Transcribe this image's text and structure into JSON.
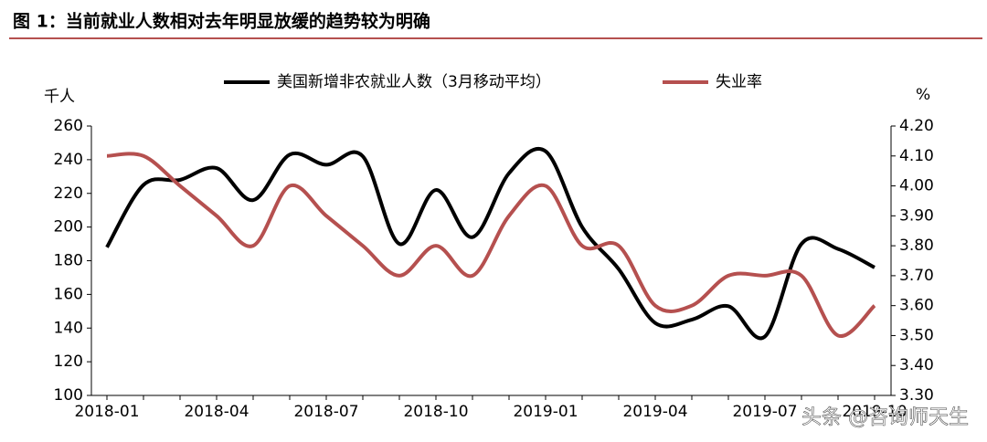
{
  "chart_data": {
    "type": "line",
    "title": "图 1：当前就业人数相对去年明显放缓的趋势较为明确",
    "y_unit": "千人",
    "y2_unit": "%",
    "watermark": "头条 @咨询师天生",
    "categories": [
      "2018-01",
      null,
      null,
      "2018-04",
      null,
      null,
      "2018-07",
      null,
      null,
      "2018-10",
      null,
      null,
      "2019-01",
      null,
      null,
      "2019-04",
      null,
      null,
      "2019-07",
      null,
      null,
      "2019-10"
    ],
    "series": [
      {
        "name": "美国新增非农就业人数（3月移动平均）",
        "color": "#000000",
        "axis": "y",
        "values": [
          188,
          225,
          228,
          235,
          216,
          243,
          237,
          242,
          190,
          222,
          194,
          232,
          245,
          200,
          175,
          143,
          145,
          153,
          135,
          190,
          187,
          176
        ]
      },
      {
        "name": "失业率",
        "color": "#b5504f",
        "axis": "y2",
        "values": [
          4.1,
          4.1,
          4.0,
          3.9,
          3.8,
          4.0,
          3.9,
          3.8,
          3.7,
          3.8,
          3.7,
          3.9,
          4.0,
          3.8,
          3.8,
          3.6,
          3.6,
          3.7,
          3.7,
          3.7,
          3.5,
          3.6
        ]
      }
    ],
    "ylim": [
      100,
      260
    ],
    "yticks": [
      100,
      120,
      140,
      160,
      180,
      200,
      220,
      240,
      260
    ],
    "y2lim": [
      3.3,
      4.2
    ],
    "y2ticks": [
      {
        "value": 3.3,
        "label": "3.30"
      },
      {
        "value": 3.4,
        "label": "3.40"
      },
      {
        "value": 3.5,
        "label": "3.50"
      },
      {
        "value": 3.6,
        "label": "3.60"
      },
      {
        "value": 3.7,
        "label": "3.70"
      },
      {
        "value": 3.8,
        "label": "3.80"
      },
      {
        "value": 3.9,
        "label": "3.90"
      },
      {
        "value": 4.0,
        "label": "4.00"
      },
      {
        "value": 4.1,
        "label": "4.10"
      },
      {
        "value": 4.2,
        "label": "4.20"
      }
    ],
    "legend": "top",
    "grid": false
  }
}
